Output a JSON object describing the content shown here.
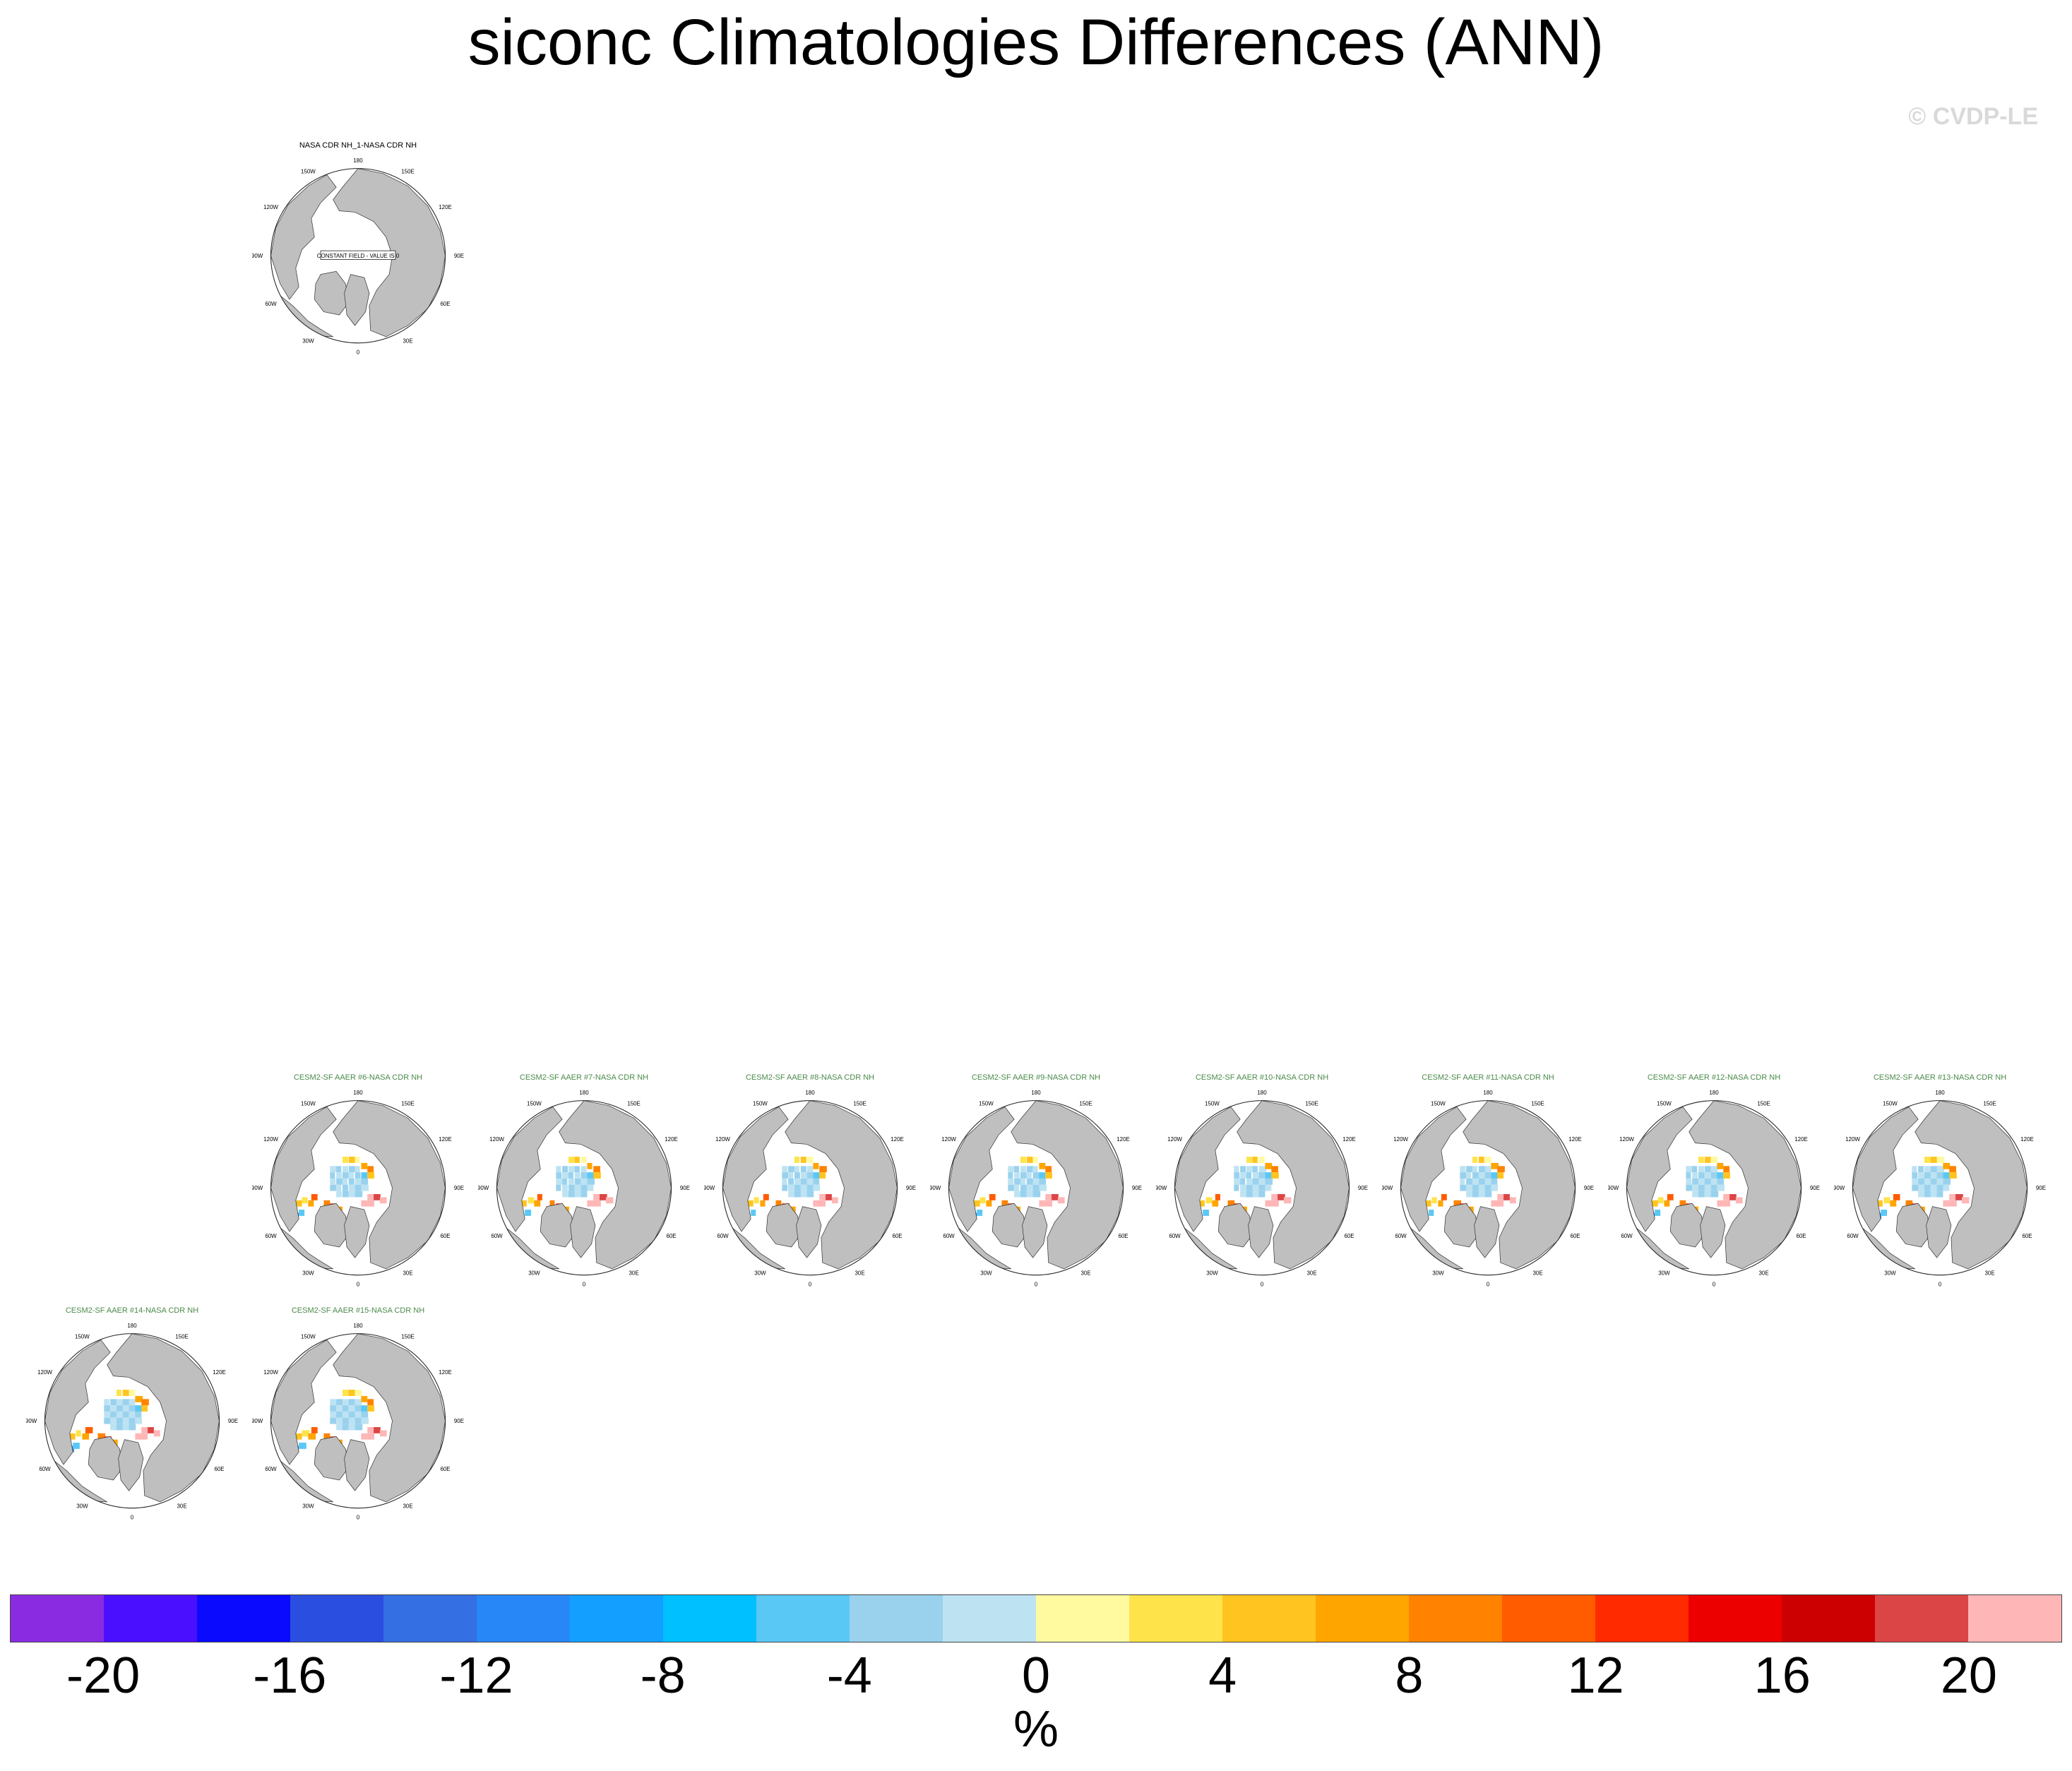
{
  "title": "siconc Climatologies Differences (ANN)",
  "copyright": "© CVDP-LE",
  "panels": [
    {
      "title": "NASA CDR NH_1-NASA CDR NH",
      "title_color": "#000000",
      "kind": "constant",
      "note": "CONSTANT FIELD - VALUE IS 0"
    },
    {
      "title": "CESM2-SF AAER #6-NASA CDR NH",
      "title_color": "#4a8a4a",
      "kind": "field"
    },
    {
      "title": "CESM2-SF AAER #7-NASA CDR NH",
      "title_color": "#4a8a4a",
      "kind": "field"
    },
    {
      "title": "CESM2-SF AAER #8-NASA CDR NH",
      "title_color": "#4a8a4a",
      "kind": "field"
    },
    {
      "title": "CESM2-SF AAER #9-NASA CDR NH",
      "title_color": "#4a8a4a",
      "kind": "field"
    },
    {
      "title": "CESM2-SF AAER #10-NASA CDR NH",
      "title_color": "#4a8a4a",
      "kind": "field"
    },
    {
      "title": "CESM2-SF AAER #11-NASA CDR NH",
      "title_color": "#4a8a4a",
      "kind": "field"
    },
    {
      "title": "CESM2-SF AAER #12-NASA CDR NH",
      "title_color": "#4a8a4a",
      "kind": "field"
    },
    {
      "title": "CESM2-SF AAER #13-NASA CDR NH",
      "title_color": "#4a8a4a",
      "kind": "field"
    },
    {
      "title": "CESM2-SF AAER #14-NASA CDR NH",
      "title_color": "#4a8a4a",
      "kind": "field"
    },
    {
      "title": "CESM2-SF AAER #15-NASA CDR NH",
      "title_color": "#4a8a4a",
      "kind": "field"
    }
  ],
  "map_labels": {
    "top": "180",
    "bottom": "0",
    "left": "90W",
    "right": "90E",
    "tl1": "150W",
    "tl2": "120W",
    "tr1": "150E",
    "tr2": "120E",
    "bl1": "60W",
    "bl2": "30W",
    "br1": "60E",
    "br2": "30E"
  },
  "colorbar": {
    "colors": [
      "#8a2be2",
      "#4b0fff",
      "#0a0aff",
      "#2a4fe0",
      "#346fe4",
      "#2887f7",
      "#139fff",
      "#00c0ff",
      "#5ac8f5",
      "#9ad2ee",
      "#bde3f3",
      "#fff9a0",
      "#ffe34a",
      "#ffc41f",
      "#ffa500",
      "#ff8300",
      "#ff5c00",
      "#ff2a00",
      "#ed0000",
      "#cc0000",
      "#dc4545",
      "#ffb6b6"
    ],
    "tick_labels": [
      "-20",
      "-16",
      "-12",
      "-8",
      "-4",
      "0",
      "4",
      "8",
      "12",
      "16",
      "20"
    ],
    "tick_values": [
      -20,
      -16,
      -12,
      -8,
      -4,
      0,
      4,
      8,
      12,
      16,
      20
    ],
    "units": "%"
  }
}
